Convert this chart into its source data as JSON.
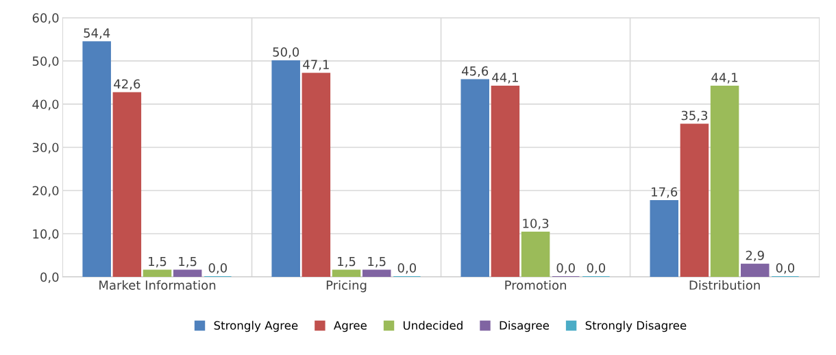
{
  "chart_data": {
    "type": "bar",
    "categories": [
      "Market Information",
      "Pricing",
      "Promotion",
      "Distribution"
    ],
    "series": [
      {
        "name": "Strongly Agree",
        "color": "#4f81bd",
        "values": [
          54.4,
          50.0,
          45.6,
          17.6
        ],
        "value_labels": [
          "54,4",
          "50,0",
          "45,6",
          "17,6"
        ]
      },
      {
        "name": "Agree",
        "color": "#c0504d",
        "values": [
          42.6,
          47.1,
          44.1,
          35.3
        ],
        "value_labels": [
          "42,6",
          "47,1",
          "44,1",
          "35,3"
        ]
      },
      {
        "name": "Undecided",
        "color": "#9bbb59",
        "values": [
          1.5,
          1.5,
          10.3,
          44.1
        ],
        "value_labels": [
          "1,5",
          "1,5",
          "10,3",
          "44,1"
        ]
      },
      {
        "name": "Disagree",
        "color": "#8064a2",
        "values": [
          1.5,
          1.5,
          0.0,
          2.9
        ],
        "value_labels": [
          "1,5",
          "1,5",
          "0,0",
          "2,9"
        ]
      },
      {
        "name": "Strongly Disagree",
        "color": "#4bacc6",
        "values": [
          0.0,
          0.0,
          0.0,
          0.0
        ],
        "value_labels": [
          "0,0",
          "0,0",
          "0,0",
          "0,0"
        ]
      }
    ],
    "ylim": [
      0,
      60
    ],
    "yticks": [
      {
        "value": 0,
        "label": "0,0"
      },
      {
        "value": 10,
        "label": "10,0"
      },
      {
        "value": 20,
        "label": "20,0"
      },
      {
        "value": 30,
        "label": "30,0"
      },
      {
        "value": 40,
        "label": "40,0"
      },
      {
        "value": 50,
        "label": "50,0"
      },
      {
        "value": 60,
        "label": "60,0"
      }
    ],
    "grid": true,
    "legend": "bottom"
  }
}
